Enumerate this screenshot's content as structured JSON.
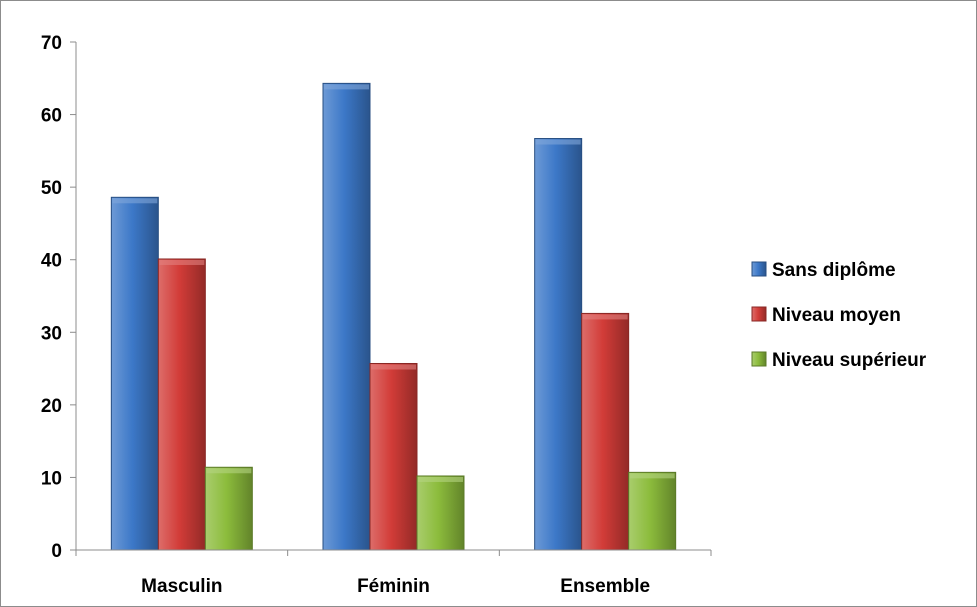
{
  "chart_data": {
    "type": "bar",
    "categories": [
      "Masculin",
      "Féminin",
      "Ensemble"
    ],
    "series": [
      {
        "name": "Sans diplôme",
        "values": [
          48.6,
          64.3,
          56.7
        ],
        "color": "#3c78c8"
      },
      {
        "name": "Niveau moyen",
        "values": [
          40.1,
          25.7,
          32.6
        ],
        "color": "#d23c38"
      },
      {
        "name": "Niveau supérieur",
        "values": [
          11.4,
          10.2,
          10.7
        ],
        "color": "#8cbc3c"
      }
    ],
    "ylim": [
      0,
      70
    ],
    "yticks": [
      0,
      10,
      20,
      30,
      40,
      50,
      60,
      70
    ],
    "grid": false,
    "legend_position": "right",
    "title": "",
    "xlabel": "",
    "ylabel": ""
  }
}
